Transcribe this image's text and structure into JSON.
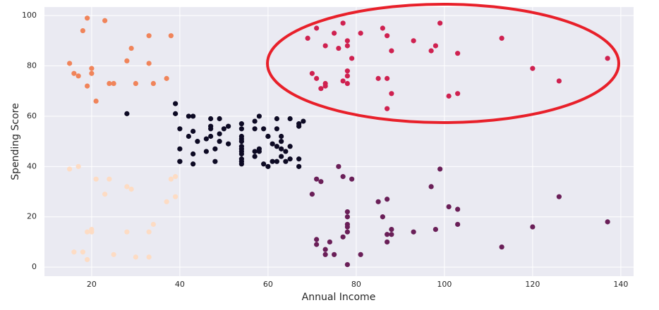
{
  "chart_data": {
    "type": "scatter",
    "x_label": "Annual Income",
    "y_label": "Spending Score",
    "xlim": [
      9.3,
      142.9
    ],
    "ylim": [
      -3.6,
      103.4
    ],
    "xticks": [
      20,
      40,
      60,
      80,
      100,
      120,
      140
    ],
    "yticks": [
      0,
      20,
      40,
      60,
      80,
      100
    ],
    "grid": true,
    "series": [
      {
        "color": "#f0845a",
        "x": [
          15,
          16,
          17,
          18,
          19,
          19,
          20,
          20,
          21,
          23,
          24,
          25,
          28,
          29,
          30,
          33,
          33,
          34,
          37,
          38
        ],
        "values": [
          81,
          77,
          76,
          94,
          99,
          72,
          79,
          77,
          66,
          98,
          73,
          73,
          82,
          87,
          73,
          92,
          81,
          73,
          75,
          92
        ]
      },
      {
        "color": "#cf2150",
        "x": [
          69,
          70,
          71,
          71,
          72,
          73,
          73,
          73,
          75,
          76,
          77,
          77,
          78,
          78,
          78,
          78,
          78,
          79,
          81,
          85,
          86,
          87,
          87,
          87,
          88,
          88,
          93,
          97,
          98,
          99,
          101,
          103,
          103,
          113,
          120,
          126,
          137
        ],
        "values": [
          91,
          77,
          95,
          75,
          71,
          88,
          73,
          72,
          93,
          87,
          97,
          74,
          90,
          88,
          78,
          76,
          73,
          83,
          93,
          75,
          95,
          92,
          75,
          63,
          86,
          69,
          90,
          86,
          88,
          97,
          68,
          85,
          69,
          91,
          79,
          74,
          83
        ]
      },
      {
        "color": "#6a1f58",
        "x": [
          70,
          71,
          72,
          71,
          71,
          73,
          73,
          74,
          75,
          76,
          77,
          77,
          78,
          78,
          78,
          78,
          78,
          78,
          79,
          81,
          85,
          86,
          87,
          87,
          87,
          88,
          88,
          93,
          97,
          98,
          99,
          101,
          103,
          103,
          113,
          120,
          126,
          137
        ],
        "values": [
          29,
          35,
          34,
          11,
          9,
          7,
          5,
          10,
          5,
          40,
          36,
          12,
          22,
          20,
          17,
          16,
          14,
          1,
          35,
          5,
          26,
          20,
          27,
          13,
          10,
          15,
          13,
          14,
          32,
          15,
          39,
          24,
          23,
          17,
          8,
          16,
          28,
          18
        ]
      },
      {
        "color": "#fddcc4",
        "x": [
          15,
          16,
          17,
          18,
          19,
          19,
          20,
          20,
          21,
          23,
          24,
          25,
          28,
          28,
          29,
          30,
          33,
          33,
          34,
          37,
          38,
          39,
          39
        ],
        "values": [
          39,
          6,
          40,
          6,
          3,
          14,
          15,
          14,
          35,
          29,
          35,
          5,
          32,
          14,
          31,
          4,
          14,
          4,
          17,
          26,
          35,
          36,
          28
        ]
      },
      {
        "color": "#0d0a24",
        "x": [
          28,
          39,
          39,
          40,
          40,
          40,
          40,
          42,
          42,
          43,
          43,
          43,
          43,
          44,
          46,
          46,
          47,
          47,
          47,
          47,
          48,
          48,
          49,
          49,
          49,
          50,
          51,
          51,
          54,
          54,
          54,
          54,
          54,
          54,
          54,
          54,
          54,
          54,
          54,
          54,
          57,
          57,
          57,
          57,
          58,
          58,
          58,
          59,
          59,
          60,
          60,
          60,
          61,
          61,
          62,
          62,
          62,
          62,
          63,
          63,
          63,
          63,
          64,
          64,
          65,
          65,
          65,
          67,
          67,
          67,
          67,
          68
        ],
        "values": [
          61,
          65,
          61,
          55,
          47,
          42,
          42,
          52,
          60,
          54,
          60,
          45,
          41,
          50,
          51,
          46,
          56,
          52,
          59,
          55,
          47,
          42,
          59,
          53,
          50,
          55,
          56,
          49,
          42,
          57,
          55,
          52,
          51,
          50,
          48,
          47,
          46,
          45,
          43,
          41,
          58,
          55,
          46,
          44,
          60,
          46,
          47,
          41,
          55,
          52,
          52,
          40,
          49,
          42,
          59,
          55,
          48,
          42,
          50,
          52,
          47,
          44,
          42,
          46,
          59,
          48,
          43,
          57,
          56,
          43,
          40,
          58
        ]
      }
    ]
  }
}
